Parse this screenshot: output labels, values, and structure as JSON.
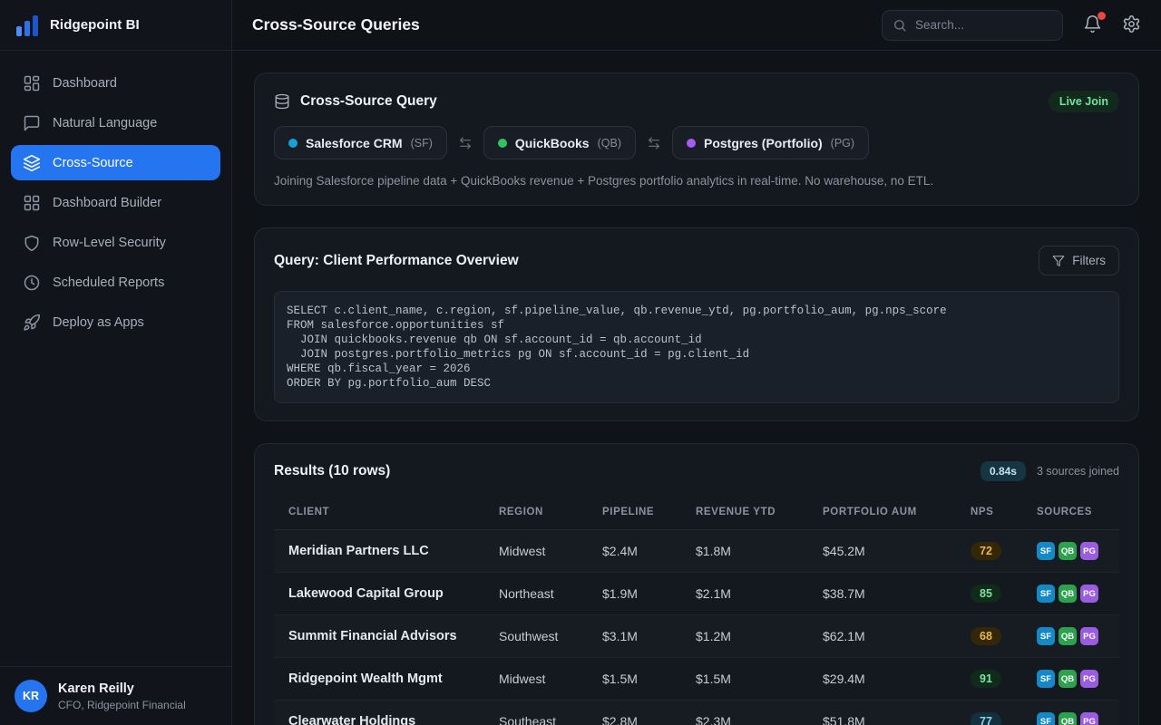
{
  "app": {
    "brand": "Ridgepoint BI",
    "logo_icon": "bar-chart-icon"
  },
  "colors": {
    "accent": "#2574f0",
    "notification_dot": "#ef4444",
    "live_badge": "#6fe3a1",
    "source_colors": {
      "SF": "#1489c6",
      "QB": "#2ca24e",
      "PG": "#9a5ce0"
    }
  },
  "sidebar": {
    "items": [
      {
        "id": "dashboard",
        "label": "Dashboard",
        "icon": "dashboard-grid-icon",
        "active": false
      },
      {
        "id": "natural-language",
        "label": "Natural Language",
        "icon": "chat-bubble-icon",
        "active": false
      },
      {
        "id": "cross-source",
        "label": "Cross-Source",
        "icon": "layers-icon",
        "active": true
      },
      {
        "id": "dashboard-builder",
        "label": "Dashboard Builder",
        "icon": "grid-icon",
        "active": false
      },
      {
        "id": "row-level-security",
        "label": "Row-Level Security",
        "icon": "shield-icon",
        "active": false
      },
      {
        "id": "scheduled-reports",
        "label": "Scheduled Reports",
        "icon": "clock-icon",
        "active": false
      },
      {
        "id": "deploy-as-apps",
        "label": "Deploy as Apps",
        "icon": "rocket-icon",
        "active": false
      }
    ],
    "user": {
      "initials": "KR",
      "name": "Karen Reilly",
      "role": "CFO, Ridgepoint Financial"
    }
  },
  "header": {
    "title": "Cross-Source Queries",
    "search_placeholder": "Search..."
  },
  "query_card": {
    "title": "Cross-Source Query",
    "badge": "Live Join",
    "sources": [
      {
        "name": "Salesforce CRM",
        "code": "(SF)",
        "dot_color": "#17a0d8"
      },
      {
        "name": "QuickBooks",
        "code": "(QB)",
        "dot_color": "#35c263"
      },
      {
        "name": "Postgres (Portfolio)",
        "code": "(PG)",
        "dot_color": "#a55cf0"
      }
    ],
    "description": "Joining Salesforce pipeline data + QuickBooks revenue + Postgres portfolio analytics in real-time. No warehouse, no ETL."
  },
  "sql_card": {
    "title": "Query: Client Performance Overview",
    "filters_label": "Filters",
    "sql_lines": [
      "SELECT c.client_name, c.region, sf.pipeline_value, qb.revenue_ytd, pg.portfolio_aum, pg.nps_score",
      "FROM salesforce.opportunities sf",
      "  JOIN quickbooks.revenue qb ON sf.account_id = qb.account_id",
      "  JOIN postgres.portfolio_metrics pg ON sf.account_id = pg.client_id",
      "WHERE qb.fiscal_year = 2026",
      "ORDER BY pg.portfolio_aum DESC"
    ]
  },
  "results": {
    "title": "Results (10 rows)",
    "duration_badge": "0.84s",
    "sources_note": "3 sources joined",
    "columns": [
      "CLIENT",
      "REGION",
      "PIPELINE",
      "REVENUE YTD",
      "PORTFOLIO AUM",
      "NPS",
      "SOURCES"
    ],
    "rows": [
      {
        "client": "Meridian Partners LLC",
        "region": "Midwest",
        "pipeline": "$2.4M",
        "revenue_ytd": "$1.8M",
        "portfolio_aum": "$45.2M",
        "nps": "72",
        "nps_tone": "amber",
        "sources": [
          "SF",
          "QB",
          "PG"
        ]
      },
      {
        "client": "Lakewood Capital Group",
        "region": "Northeast",
        "pipeline": "$1.9M",
        "revenue_ytd": "$2.1M",
        "portfolio_aum": "$38.7M",
        "nps": "85",
        "nps_tone": "green",
        "sources": [
          "SF",
          "QB",
          "PG"
        ]
      },
      {
        "client": "Summit Financial Advisors",
        "region": "Southwest",
        "pipeline": "$3.1M",
        "revenue_ytd": "$1.2M",
        "portfolio_aum": "$62.1M",
        "nps": "68",
        "nps_tone": "amber",
        "sources": [
          "SF",
          "QB",
          "PG"
        ]
      },
      {
        "client": "Ridgepoint Wealth Mgmt",
        "region": "Midwest",
        "pipeline": "$1.5M",
        "revenue_ytd": "$1.5M",
        "portfolio_aum": "$29.4M",
        "nps": "91",
        "nps_tone": "green",
        "sources": [
          "SF",
          "QB",
          "PG"
        ]
      },
      {
        "client": "Clearwater Holdings",
        "region": "Southeast",
        "pipeline": "$2.8M",
        "revenue_ytd": "$2.3M",
        "portfolio_aum": "$51.8M",
        "nps": "77",
        "nps_tone": "blue",
        "sources": [
          "SF",
          "QB",
          "PG"
        ]
      }
    ]
  }
}
